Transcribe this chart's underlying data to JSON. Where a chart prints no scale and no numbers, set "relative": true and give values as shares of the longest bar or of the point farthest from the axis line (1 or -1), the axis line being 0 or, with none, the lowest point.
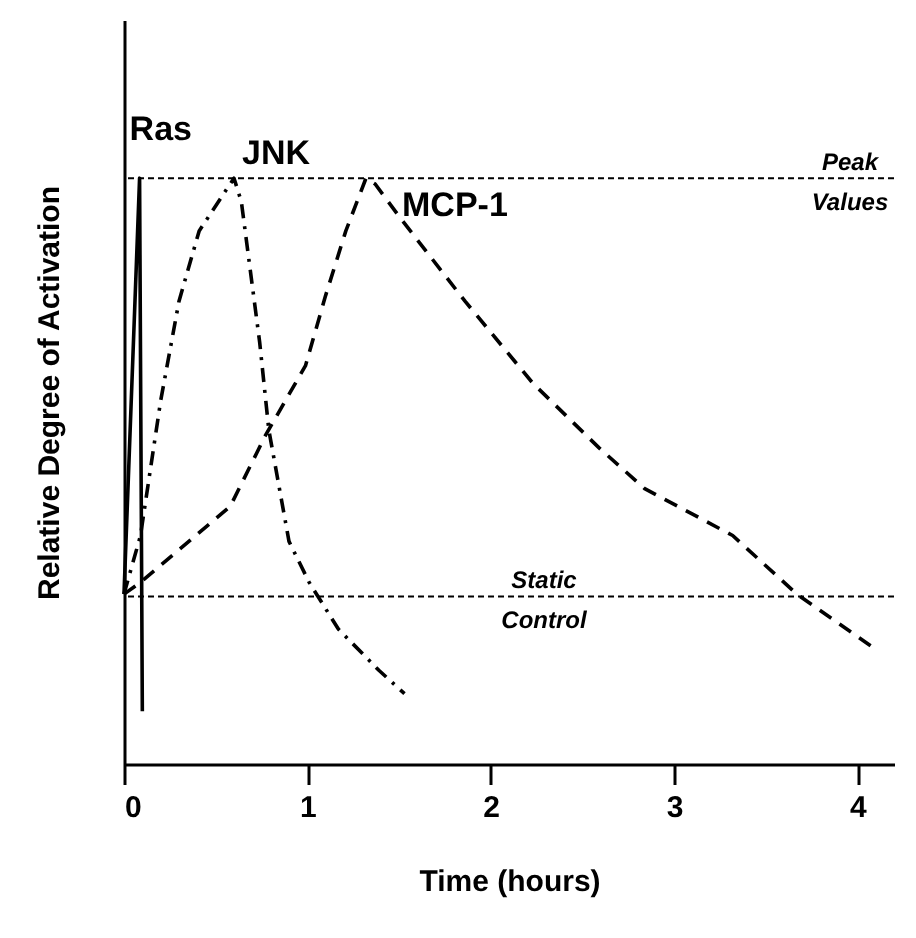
{
  "chart_data": {
    "type": "line",
    "relative": true,
    "xlabel": "Time  (hours)",
    "ylabel": "Relative Degree of Activation",
    "xlim": [
      0,
      4.2
    ],
    "xticks": [
      0,
      1,
      2,
      3,
      4
    ],
    "marker": "none",
    "series": [
      {
        "name": "Ras",
        "color": "#000000",
        "line_style": "solid",
        "x": [
          0,
          0.085,
          0.1
        ],
        "values": [
          0.29,
          1.0,
          0.09
        ]
      },
      {
        "name": "JNK",
        "color": "#000000",
        "line_style": "dotted",
        "x": [
          0,
          0.09,
          0.2,
          0.3,
          0.41,
          0.6,
          0.64,
          0.74,
          0.79,
          0.9,
          1.01,
          1.17,
          1.39,
          1.53
        ],
        "values": [
          0.29,
          0.39,
          0.62,
          0.79,
          0.91,
          1.0,
          0.96,
          0.72,
          0.57,
          0.38,
          0.31,
          0.23,
          0.16,
          0.12
        ]
      },
      {
        "name": "MCP-1",
        "color": "#000000",
        "line_style": "dashed",
        "x": [
          0,
          0.09,
          0.58,
          0.77,
          0.99,
          1.1,
          1.21,
          1.32,
          1.37,
          1.5,
          1.86,
          2.23,
          2.59,
          2.84,
          3.32,
          3.67,
          4.08
        ],
        "values": [
          0.29,
          0.31,
          0.44,
          0.56,
          0.68,
          0.8,
          0.91,
          1.0,
          0.99,
          0.935,
          0.79,
          0.65,
          0.54,
          0.47,
          0.39,
          0.29,
          0.2
        ]
      }
    ],
    "ref_lines": [
      {
        "axis": "y",
        "value": 1.0,
        "label": "Peak Values",
        "line_style": "dashed"
      },
      {
        "axis": "y",
        "value": 0.286,
        "label": "Static Control",
        "line_style": "dashed"
      }
    ]
  }
}
